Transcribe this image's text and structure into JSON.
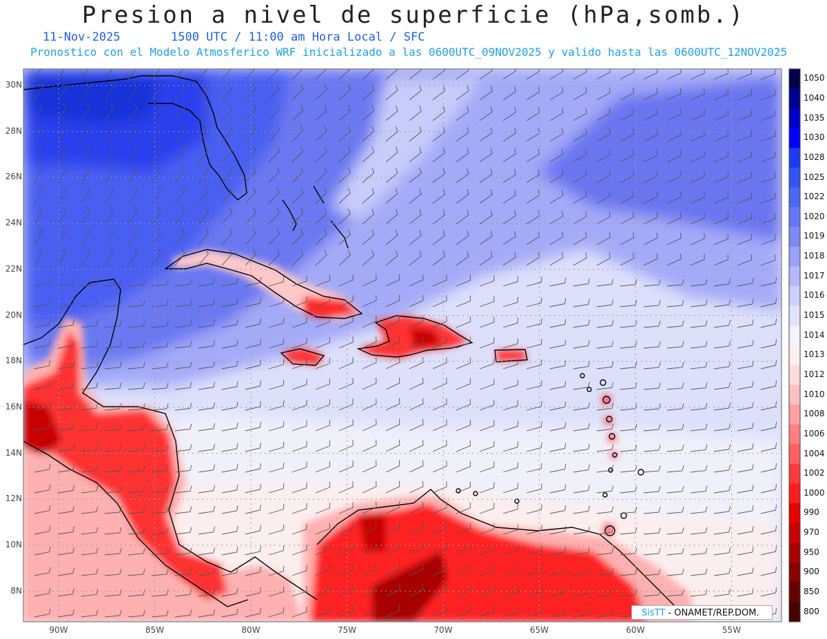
{
  "title": "Presion a nivel de superficie (hPa,somb.)",
  "date_line": "11-Nov-2025",
  "time_line": "1500 UTC / 11:00 am Hora Local / SFC",
  "forecast_line": "Pronostico con el Modelo Atmosferico WRF inicializado a las 0600UTC_09NOV2025 y valido hasta las  0600UTC_12NOV2025",
  "lat_labels": [
    "30N",
    "28N",
    "26N",
    "24N",
    "22N",
    "20N",
    "18N",
    "16N",
    "14N",
    "12N",
    "10N",
    "8N"
  ],
  "lon_labels": [
    "90W",
    "85W",
    "80W",
    "75W",
    "70W",
    "65W",
    "60W",
    "55W"
  ],
  "colorbar": {
    "levels": [
      "1050",
      "1040",
      "1035",
      "1030",
      "1028",
      "1025",
      "1022",
      "1020",
      "1019",
      "1018",
      "1017",
      "1016",
      "1015",
      "1014",
      "1013",
      "1012",
      "1010",
      "1008",
      "1006",
      "1004",
      "1002",
      "1000",
      "990",
      "970",
      "950",
      "900",
      "850",
      "800"
    ],
    "colors": [
      "#00004a",
      "#000090",
      "#0000c8",
      "#0000ff",
      "#1a3cf0",
      "#3355f2",
      "#4d66f4",
      "#6677f6",
      "#8088f6",
      "#9aa0f8",
      "#b3b8fa",
      "#ccd0fb",
      "#e0e3fc",
      "#f2f3fd",
      "#fff0f0",
      "#ffdcdc",
      "#ffc0c0",
      "#ffa0a0",
      "#ff8080",
      "#ff6060",
      "#ff3a3a",
      "#ff1e1e",
      "#e80000",
      "#c80000",
      "#a80000",
      "#880000",
      "#680000",
      "#480000"
    ]
  },
  "credit": {
    "brand": "SisTT",
    "text": " - ONAMET/REP.DOM."
  }
}
